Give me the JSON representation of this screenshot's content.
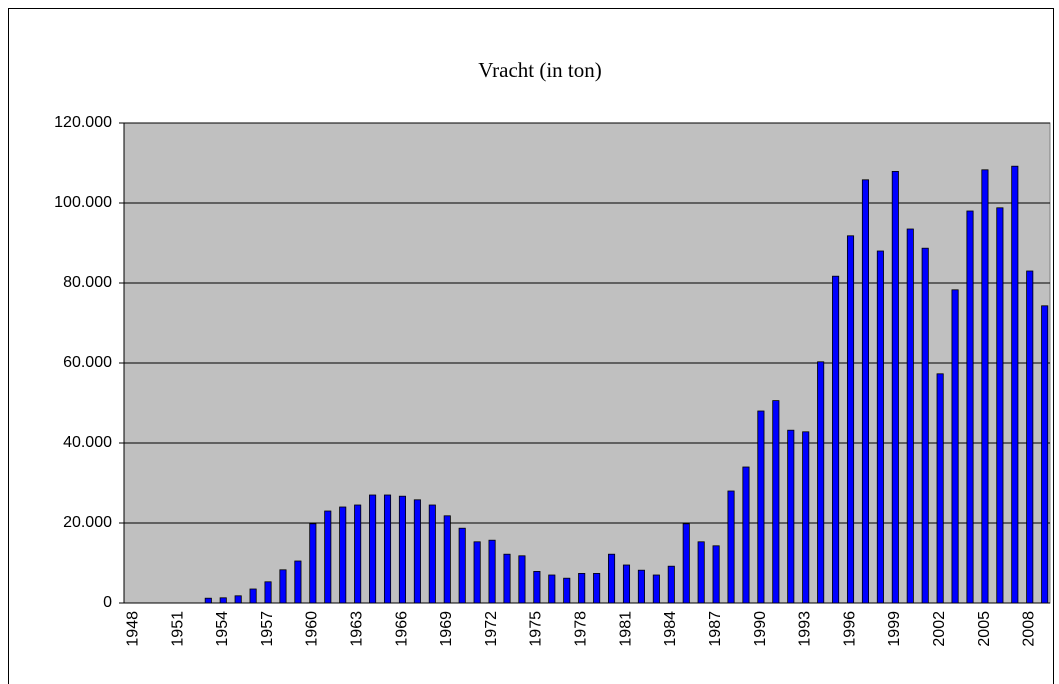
{
  "chart_data": {
    "type": "bar",
    "title": "Vracht (in ton)",
    "categories": [
      "1948",
      null,
      null,
      "1951",
      null,
      null,
      "1954",
      null,
      null,
      "1957",
      null,
      null,
      "1960",
      null,
      null,
      "1963",
      null,
      null,
      "1966",
      null,
      null,
      "1969",
      null,
      null,
      "1972",
      null,
      null,
      "1975",
      null,
      null,
      "1978",
      null,
      null,
      "1981",
      null,
      null,
      "1984",
      null,
      null,
      "1987",
      null,
      null,
      "1990",
      null,
      null,
      "1993",
      null,
      null,
      "1996",
      null,
      null,
      "1999",
      null,
      null,
      "2002",
      null,
      null,
      "2005",
      null,
      null,
      "2008",
      null
    ],
    "values": [
      0,
      0,
      0,
      0,
      0,
      1200,
      1300,
      1800,
      3500,
      5300,
      8300,
      10500,
      19800,
      23000,
      24000,
      24500,
      27000,
      27000,
      26700,
      25800,
      24500,
      21800,
      18700,
      15300,
      15700,
      12200,
      11800,
      7900,
      7000,
      6200,
      7400,
      7400,
      12200,
      9500,
      8200,
      7000,
      9200,
      19800,
      15300,
      14300,
      28000,
      34000,
      48000,
      50600,
      43200,
      42800,
      60300,
      81700,
      91800,
      105800,
      88000,
      107900,
      93500,
      88700,
      57300,
      78300,
      98000,
      108300,
      98800,
      109200,
      83000,
      74300
    ],
    "color": "#0000ff",
    "ylim": [
      0,
      120000
    ],
    "yticks": [
      0,
      {
        "value": 20000,
        "label": "20.000"
      },
      {
        "value": 40000,
        "label": "40.000"
      },
      {
        "value": 60000,
        "label": "60.000"
      },
      {
        "value": 80000,
        "label": "80.000"
      },
      {
        "value": 100000,
        "label": "100.000"
      },
      {
        "value": 120000,
        "label": "120.000"
      }
    ],
    "grid": true
  }
}
